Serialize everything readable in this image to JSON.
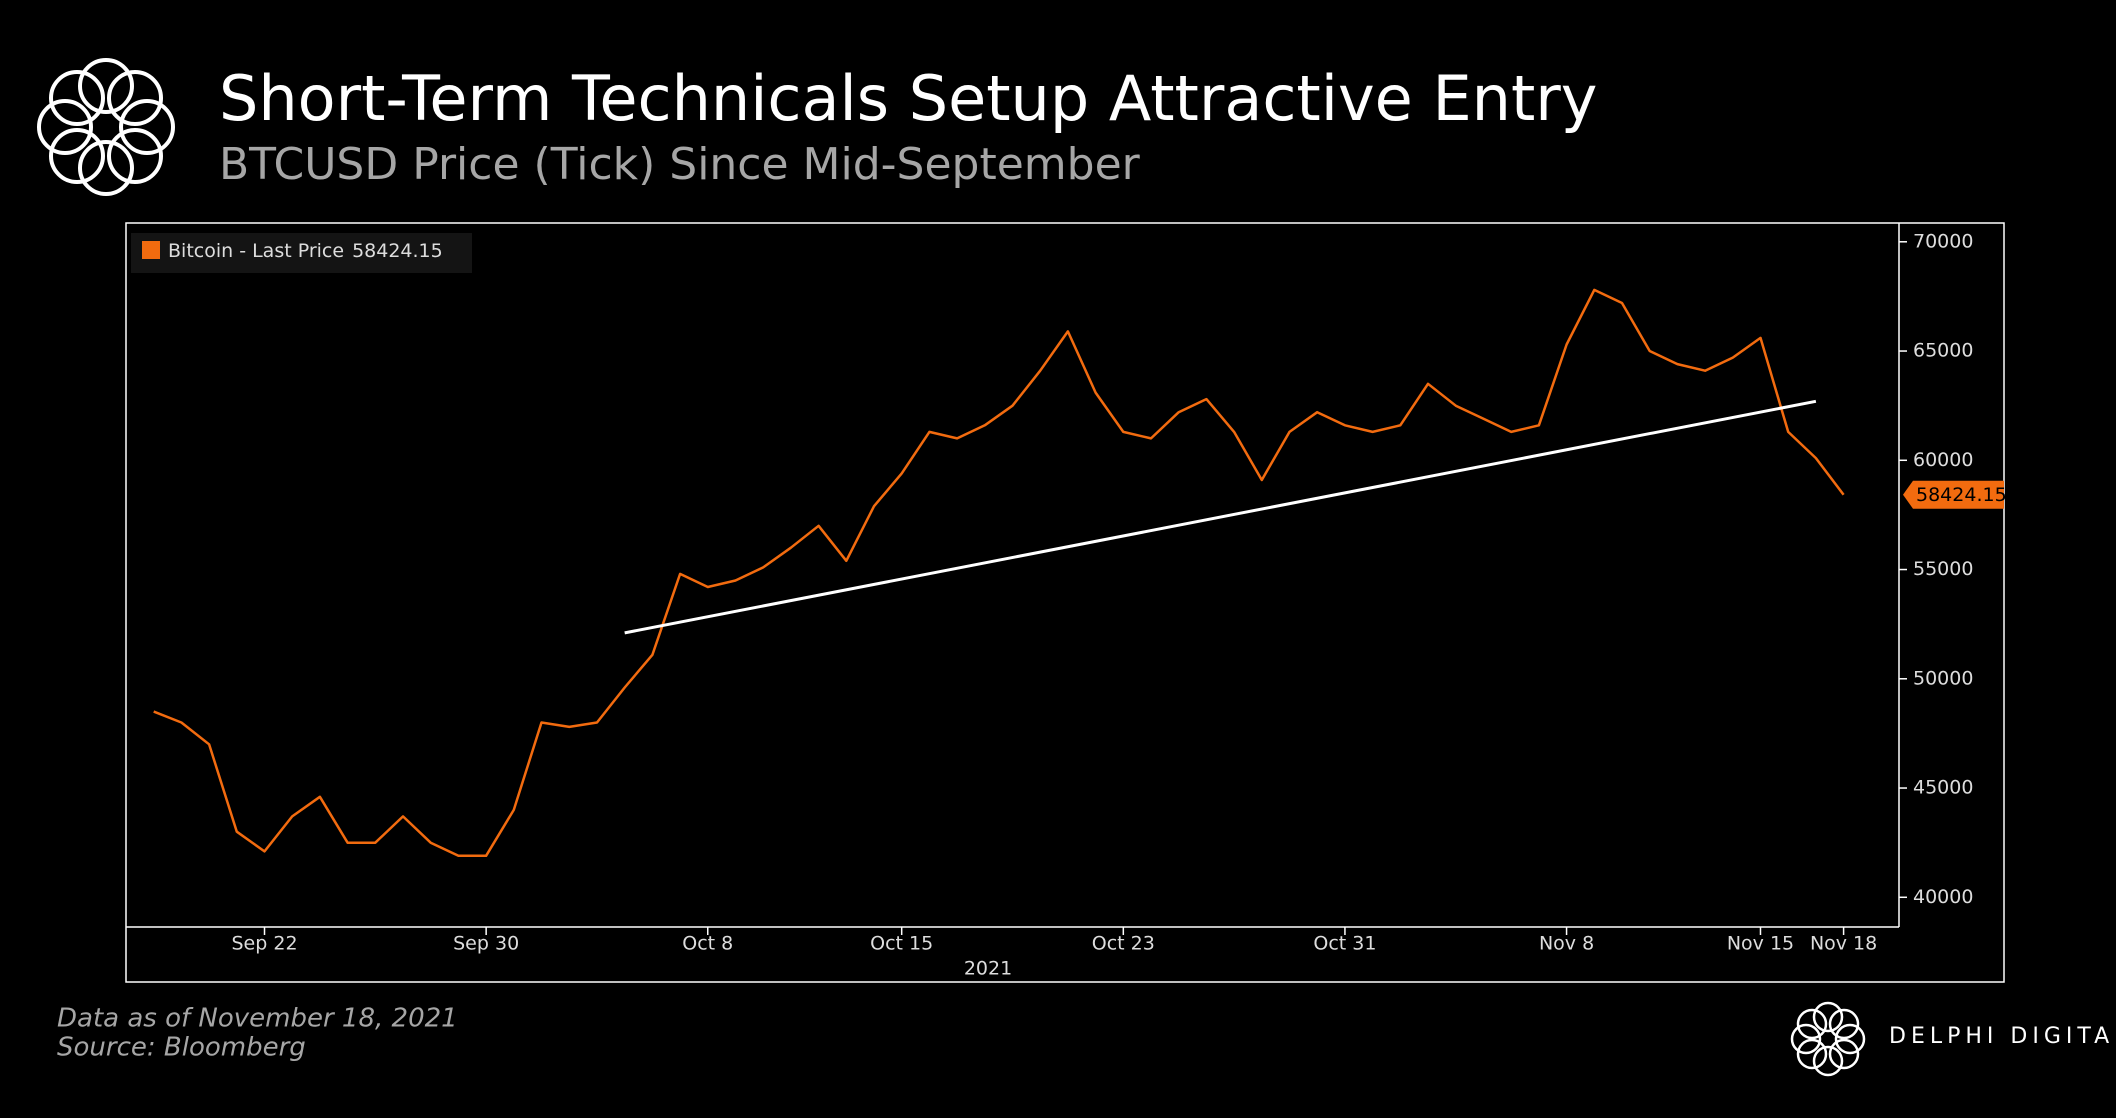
{
  "chart_data": {
    "type": "line",
    "title": "Short-Term Technicals Setup Attractive Entry",
    "subtitle": "BTCUSD Price (Tick) Since Mid-September",
    "xlabel": "2021",
    "footnote": "Data as of November 18, 2021",
    "source": "Source: Bloomberg",
    "brand": "DELPHI DIGITAL",
    "x": [
      "2021-09-18",
      "2021-09-19",
      "2021-09-20",
      "2021-09-21",
      "2021-09-22",
      "2021-09-23",
      "2021-09-24",
      "2021-09-25",
      "2021-09-26",
      "2021-09-27",
      "2021-09-28",
      "2021-09-29",
      "2021-09-30",
      "2021-10-01",
      "2021-10-02",
      "2021-10-03",
      "2021-10-04",
      "2021-10-05",
      "2021-10-06",
      "2021-10-07",
      "2021-10-08",
      "2021-10-09",
      "2021-10-10",
      "2021-10-11",
      "2021-10-12",
      "2021-10-13",
      "2021-10-14",
      "2021-10-15",
      "2021-10-16",
      "2021-10-17",
      "2021-10-18",
      "2021-10-19",
      "2021-10-20",
      "2021-10-21",
      "2021-10-22",
      "2021-10-23",
      "2021-10-24",
      "2021-10-25",
      "2021-10-26",
      "2021-10-27",
      "2021-10-28",
      "2021-10-29",
      "2021-10-30",
      "2021-10-31",
      "2021-11-01",
      "2021-11-02",
      "2021-11-03",
      "2021-11-04",
      "2021-11-05",
      "2021-11-06",
      "2021-11-07",
      "2021-11-08",
      "2021-11-09",
      "2021-11-10",
      "2021-11-11",
      "2021-11-12",
      "2021-11-13",
      "2021-11-14",
      "2021-11-15",
      "2021-11-16",
      "2021-11-17",
      "2021-11-18"
    ],
    "series": [
      {
        "name": "Bitcoin - Last Price",
        "color": "#f26b0f",
        "values": [
          48500,
          48000,
          47000,
          43000,
          42100,
          43700,
          44600,
          42500,
          42500,
          43700,
          42500,
          41900,
          41900,
          44000,
          48000,
          47800,
          48000,
          49600,
          51100,
          54800,
          54200,
          54500,
          55100,
          56000,
          57000,
          55400,
          57900,
          59400,
          61300,
          61000,
          61600,
          62500,
          64100,
          65900,
          63100,
          61300,
          61000,
          62200,
          62800,
          61300,
          59100,
          61300,
          62200,
          61600,
          61300,
          61600,
          63500,
          62500,
          61900,
          61300,
          61600,
          65300,
          67800,
          67200,
          65000,
          64400,
          64100,
          64700,
          65600,
          61300,
          60100,
          58424.15
        ]
      }
    ],
    "trendline": {
      "x": [
        "2021-10-05",
        "2021-11-17"
      ],
      "values": [
        52100,
        62700
      ],
      "color": "#ffffff"
    },
    "xlim": [
      "2021-09-17",
      "2021-11-20"
    ],
    "xticks": [
      {
        "value": "2021-09-22",
        "label": "Sep 22"
      },
      {
        "value": "2021-09-30",
        "label": "Sep 30"
      },
      {
        "value": "2021-10-08",
        "label": "Oct 8"
      },
      {
        "value": "2021-10-15",
        "label": "Oct 15"
      },
      {
        "value": "2021-10-23",
        "label": "Oct 23"
      },
      {
        "value": "2021-10-31",
        "label": "Oct 31"
      },
      {
        "value": "2021-11-08",
        "label": "Nov 8"
      },
      {
        "value": "2021-11-15",
        "label": "Nov 15"
      },
      {
        "value": "2021-11-18",
        "label": "Nov 18"
      }
    ],
    "ylim": [
      38640,
      70860
    ],
    "yticks": [
      40000,
      45000,
      50000,
      55000,
      60000,
      65000,
      70000
    ],
    "legend": "top-left",
    "grid": false
  }
}
